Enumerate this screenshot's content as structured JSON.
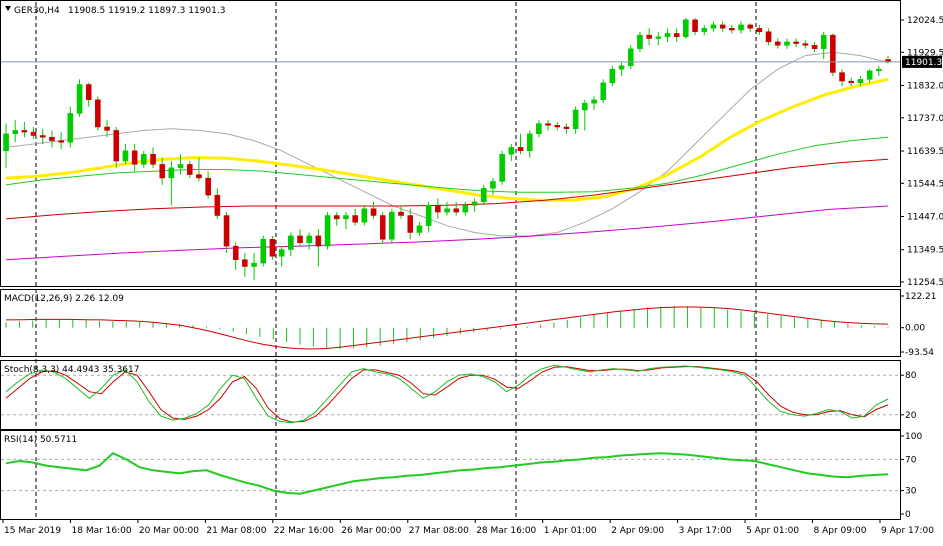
{
  "chart_data": {
    "type": "candlestick",
    "symbol_info": {
      "symbol": "GER30,H4",
      "ohlc": "11908.5 11919.2 11897.3 11901.3",
      "current_price": "11901.3"
    },
    "price_axis": {
      "ticks": [
        "12024.5",
        "11929.5",
        "11832.0",
        "11737.0",
        "11639.5",
        "11544.5",
        "11447.0",
        "11349.5",
        "11254.5"
      ],
      "ylim": [
        11254.5,
        12024.5
      ]
    },
    "candles": [
      {
        "o": 11640,
        "h": 11720,
        "l": 11590,
        "c": 11690
      },
      {
        "o": 11690,
        "h": 11730,
        "l": 11665,
        "c": 11700
      },
      {
        "o": 11700,
        "h": 11725,
        "l": 11680,
        "c": 11695
      },
      {
        "o": 11695,
        "h": 11710,
        "l": 11675,
        "c": 11685
      },
      {
        "o": 11685,
        "h": 11705,
        "l": 11660,
        "c": 11680
      },
      {
        "o": 11680,
        "h": 11700,
        "l": 11650,
        "c": 11670
      },
      {
        "o": 11670,
        "h": 11695,
        "l": 11645,
        "c": 11665
      },
      {
        "o": 11665,
        "h": 11770,
        "l": 11650,
        "c": 11750
      },
      {
        "o": 11750,
        "h": 11850,
        "l": 11740,
        "c": 11835
      },
      {
        "o": 11835,
        "h": 11840,
        "l": 11770,
        "c": 11790
      },
      {
        "o": 11790,
        "h": 11800,
        "l": 11700,
        "c": 11710
      },
      {
        "o": 11710,
        "h": 11730,
        "l": 11680,
        "c": 11700
      },
      {
        "o": 11700,
        "h": 11710,
        "l": 11590,
        "c": 11610
      },
      {
        "o": 11610,
        "h": 11660,
        "l": 11600,
        "c": 11640
      },
      {
        "o": 11640,
        "h": 11660,
        "l": 11580,
        "c": 11600
      },
      {
        "o": 11600,
        "h": 11640,
        "l": 11590,
        "c": 11630
      },
      {
        "o": 11630,
        "h": 11650,
        "l": 11590,
        "c": 11600
      },
      {
        "o": 11600,
        "h": 11620,
        "l": 11540,
        "c": 11560
      },
      {
        "o": 11560,
        "h": 11610,
        "l": 11480,
        "c": 11590
      },
      {
        "o": 11590,
        "h": 11630,
        "l": 11570,
        "c": 11600
      },
      {
        "o": 11600,
        "h": 11610,
        "l": 11560,
        "c": 11570
      },
      {
        "o": 11570,
        "h": 11620,
        "l": 11550,
        "c": 11560
      },
      {
        "o": 11560,
        "h": 11580,
        "l": 11500,
        "c": 11510
      },
      {
        "o": 11510,
        "h": 11530,
        "l": 11440,
        "c": 11450
      },
      {
        "o": 11450,
        "h": 11460,
        "l": 11340,
        "c": 11360
      },
      {
        "o": 11360,
        "h": 11370,
        "l": 11290,
        "c": 11320
      },
      {
        "o": 11320,
        "h": 11340,
        "l": 11270,
        "c": 11300
      },
      {
        "o": 11300,
        "h": 11340,
        "l": 11260,
        "c": 11310
      },
      {
        "o": 11310,
        "h": 11390,
        "l": 11300,
        "c": 11380
      },
      {
        "o": 11380,
        "h": 11390,
        "l": 11320,
        "c": 11330
      },
      {
        "o": 11330,
        "h": 11360,
        "l": 11300,
        "c": 11350
      },
      {
        "o": 11350,
        "h": 11400,
        "l": 11330,
        "c": 11390
      },
      {
        "o": 11390,
        "h": 11410,
        "l": 11360,
        "c": 11370
      },
      {
        "o": 11370,
        "h": 11400,
        "l": 11350,
        "c": 11390
      },
      {
        "o": 11390,
        "h": 11410,
        "l": 11300,
        "c": 11360
      },
      {
        "o": 11360,
        "h": 11460,
        "l": 11350,
        "c": 11450
      },
      {
        "o": 11450,
        "h": 11460,
        "l": 11420,
        "c": 11440
      },
      {
        "o": 11440,
        "h": 11460,
        "l": 11410,
        "c": 11450
      },
      {
        "o": 11450,
        "h": 11470,
        "l": 11420,
        "c": 11430
      },
      {
        "o": 11430,
        "h": 11480,
        "l": 11420,
        "c": 11470
      },
      {
        "o": 11470,
        "h": 11490,
        "l": 11440,
        "c": 11450
      },
      {
        "o": 11450,
        "h": 11460,
        "l": 11370,
        "c": 11380
      },
      {
        "o": 11380,
        "h": 11470,
        "l": 11370,
        "c": 11460
      },
      {
        "o": 11460,
        "h": 11480,
        "l": 11440,
        "c": 11450
      },
      {
        "o": 11450,
        "h": 11470,
        "l": 11380,
        "c": 11400
      },
      {
        "o": 11400,
        "h": 11430,
        "l": 11390,
        "c": 11420
      },
      {
        "o": 11420,
        "h": 11490,
        "l": 11400,
        "c": 11480
      },
      {
        "o": 11480,
        "h": 11500,
        "l": 11440,
        "c": 11460
      },
      {
        "o": 11460,
        "h": 11490,
        "l": 11450,
        "c": 11470
      },
      {
        "o": 11470,
        "h": 11490,
        "l": 11450,
        "c": 11460
      },
      {
        "o": 11460,
        "h": 11490,
        "l": 11450,
        "c": 11480
      },
      {
        "o": 11480,
        "h": 11500,
        "l": 11460,
        "c": 11490
      },
      {
        "o": 11490,
        "h": 11540,
        "l": 11480,
        "c": 11530
      },
      {
        "o": 11530,
        "h": 11560,
        "l": 11510,
        "c": 11550
      },
      {
        "o": 11550,
        "h": 11640,
        "l": 11540,
        "c": 11630
      },
      {
        "o": 11630,
        "h": 11660,
        "l": 11610,
        "c": 11650
      },
      {
        "o": 11650,
        "h": 11690,
        "l": 11630,
        "c": 11640
      },
      {
        "o": 11640,
        "h": 11700,
        "l": 11620,
        "c": 11690
      },
      {
        "o": 11690,
        "h": 11730,
        "l": 11680,
        "c": 11720
      },
      {
        "o": 11720,
        "h": 11730,
        "l": 11700,
        "c": 11715
      },
      {
        "o": 11715,
        "h": 11725,
        "l": 11700,
        "c": 11710
      },
      {
        "o": 11710,
        "h": 11720,
        "l": 11690,
        "c": 11705
      },
      {
        "o": 11705,
        "h": 11770,
        "l": 11690,
        "c": 11760
      },
      {
        "o": 11760,
        "h": 11790,
        "l": 11700,
        "c": 11780
      },
      {
        "o": 11780,
        "h": 11800,
        "l": 11760,
        "c": 11790
      },
      {
        "o": 11790,
        "h": 11850,
        "l": 11780,
        "c": 11840
      },
      {
        "o": 11840,
        "h": 11890,
        "l": 11830,
        "c": 11880
      },
      {
        "o": 11880,
        "h": 11900,
        "l": 11860,
        "c": 11890
      },
      {
        "o": 11890,
        "h": 11950,
        "l": 11880,
        "c": 11940
      },
      {
        "o": 11940,
        "h": 11990,
        "l": 11930,
        "c": 11980
      },
      {
        "o": 11980,
        "h": 12000,
        "l": 11950,
        "c": 11970
      },
      {
        "o": 11970,
        "h": 11990,
        "l": 11950,
        "c": 11975
      },
      {
        "o": 11975,
        "h": 12000,
        "l": 11960,
        "c": 11985
      },
      {
        "o": 11985,
        "h": 12000,
        "l": 11960,
        "c": 11975
      },
      {
        "o": 11975,
        "h": 12030,
        "l": 11970,
        "c": 12025
      },
      {
        "o": 12025,
        "h": 12030,
        "l": 11980,
        "c": 11990
      },
      {
        "o": 11990,
        "h": 12010,
        "l": 11980,
        "c": 12000
      },
      {
        "o": 12000,
        "h": 12020,
        "l": 11990,
        "c": 12010
      },
      {
        "o": 12010,
        "h": 12020,
        "l": 11990,
        "c": 12000
      },
      {
        "o": 12000,
        "h": 12010,
        "l": 11985,
        "c": 11995
      },
      {
        "o": 11995,
        "h": 12020,
        "l": 11985,
        "c": 12010
      },
      {
        "o": 12010,
        "h": 12015,
        "l": 11990,
        "c": 12000
      },
      {
        "o": 12000,
        "h": 12010,
        "l": 11980,
        "c": 11990
      },
      {
        "o": 11990,
        "h": 12000,
        "l": 11950,
        "c": 11960
      },
      {
        "o": 11960,
        "h": 11970,
        "l": 11940,
        "c": 11950
      },
      {
        "o": 11950,
        "h": 11970,
        "l": 11940,
        "c": 11960
      },
      {
        "o": 11960,
        "h": 11970,
        "l": 11945,
        "c": 11955
      },
      {
        "o": 11955,
        "h": 11965,
        "l": 11940,
        "c": 11950
      },
      {
        "o": 11950,
        "h": 11960,
        "l": 11930,
        "c": 11940
      },
      {
        "o": 11940,
        "h": 11990,
        "l": 11910,
        "c": 11980
      },
      {
        "o": 11980,
        "h": 11985,
        "l": 11860,
        "c": 11870
      },
      {
        "o": 11870,
        "h": 11880,
        "l": 11830,
        "c": 11845
      },
      {
        "o": 11845,
        "h": 11855,
        "l": 11830,
        "c": 11840
      },
      {
        "o": 11840,
        "h": 11860,
        "l": 11830,
        "c": 11850
      },
      {
        "o": 11850,
        "h": 11880,
        "l": 11840,
        "c": 11875
      },
      {
        "o": 11875,
        "h": 11890,
        "l": 11860,
        "c": 11880
      },
      {
        "o": 11908.5,
        "h": 11919.2,
        "l": 11897.3,
        "c": 11901.3
      }
    ],
    "moving_averages": [
      {
        "color": "#aaaaaa",
        "values": [
          11650,
          11660,
          11670,
          11680,
          11690,
          11700,
          11705,
          11700,
          11690,
          11670,
          11640,
          11600,
          11560,
          11520,
          11480,
          11450,
          11420,
          11400,
          11390,
          11390,
          11400,
          11430,
          11470,
          11520,
          11580,
          11660,
          11740,
          11820,
          11880,
          11920,
          11930,
          11920,
          11900
        ]
      },
      {
        "color": "#ffee00",
        "values": [
          11560,
          11565,
          11575,
          11590,
          11605,
          11615,
          11620,
          11618,
          11610,
          11598,
          11585,
          11570,
          11555,
          11540,
          11525,
          11510,
          11500,
          11495,
          11495,
          11505,
          11530,
          11570,
          11620,
          11680,
          11730,
          11770,
          11805,
          11830,
          11850
        ]
      },
      {
        "color": "#22cc22",
        "values": [
          11540,
          11555,
          11565,
          11575,
          11580,
          11585,
          11585,
          11580,
          11570,
          11560,
          11550,
          11540,
          11530,
          11522,
          11518,
          11518,
          11520,
          11530,
          11545,
          11570,
          11600,
          11630,
          11655,
          11670,
          11680
        ]
      },
      {
        "color": "#cc0000",
        "values": [
          11440,
          11452,
          11462,
          11470,
          11475,
          11478,
          11478,
          11478,
          11478,
          11480,
          11485,
          11495,
          11510,
          11530,
          11550,
          11570,
          11590,
          11605,
          11615
        ]
      },
      {
        "color": "#cc00cc",
        "values": [
          11320,
          11330,
          11340,
          11348,
          11355,
          11360,
          11366,
          11372,
          11380,
          11390,
          11402,
          11416,
          11432,
          11450,
          11468,
          11478
        ]
      }
    ],
    "current_price_line": 11901.3,
    "x_axis": {
      "labels": [
        "15 Mar 2019",
        "18 Mar 16:00",
        "20 Mar 00:00",
        "21 Mar 08:00",
        "22 Mar 16:00",
        "26 Mar 00:00",
        "27 Mar 08:00",
        "28 Mar 16:00",
        "1 Apr 01:00",
        "2 Apr 09:00",
        "3 Apr 17:00",
        "5 Apr 01:00",
        "8 Apr 09:00",
        "9 Apr 17:00"
      ]
    },
    "macd": {
      "label": "MACD(12,26,9) 2.26 12.09",
      "ticks": [
        "122.21",
        "0.00",
        "-93.54"
      ],
      "ylim": [
        -93.54,
        122.21
      ],
      "histogram": [
        20,
        25,
        28,
        30,
        30,
        30,
        28,
        26,
        25,
        24,
        22,
        20,
        18,
        15,
        10,
        5,
        -5,
        -15,
        -25,
        -35,
        -45,
        -55,
        -65,
        -72,
        -78,
        -82,
        -80,
        -76,
        -70,
        -62,
        -55,
        -48,
        -40,
        -32,
        -25,
        -18,
        -12,
        -6,
        0,
        5,
        12,
        20,
        30,
        40,
        50,
        58,
        65,
        72,
        78,
        82,
        84,
        83,
        80,
        76,
        70,
        64,
        58,
        52,
        46,
        40,
        34,
        28,
        22,
        16,
        10,
        6,
        4
      ],
      "signal": [
        30,
        31,
        32,
        32,
        32,
        31,
        30,
        28,
        26,
        22,
        16,
        8,
        -4,
        -18,
        -34,
        -50,
        -64,
        -74,
        -80,
        -82,
        -80,
        -74,
        -66,
        -58,
        -50,
        -42,
        -34,
        -26,
        -18,
        -10,
        -2,
        6,
        14,
        22,
        30,
        38,
        46,
        54,
        62,
        68,
        74,
        78,
        80,
        80,
        78,
        74,
        68,
        60,
        52,
        44,
        36,
        28,
        22,
        18,
        15,
        14
      ]
    },
    "stoch": {
      "label": "Stoch(8,3,3) 44.4943 35.3617",
      "ticks": [
        "80",
        "20"
      ],
      "main": [
        55,
        70,
        82,
        88,
        85,
        75,
        60,
        45,
        60,
        80,
        88,
        70,
        40,
        18,
        12,
        15,
        22,
        35,
        60,
        80,
        75,
        45,
        18,
        10,
        8,
        12,
        25,
        45,
        65,
        85,
        90,
        85,
        82,
        75,
        60,
        45,
        55,
        70,
        80,
        82,
        78,
        70,
        55,
        65,
        80,
        90,
        95,
        92,
        88,
        85,
        88,
        90,
        88,
        86,
        90,
        92,
        93,
        94,
        92,
        90,
        88,
        85,
        80,
        60,
        40,
        25,
        20,
        18,
        22,
        28,
        25,
        15,
        18,
        35,
        44
      ],
      "signal": [
        45,
        60,
        75,
        85,
        87,
        80,
        68,
        55,
        52,
        70,
        85,
        80,
        55,
        28,
        15,
        13,
        18,
        28,
        45,
        70,
        78,
        60,
        30,
        14,
        9,
        10,
        18,
        35,
        55,
        75,
        88,
        88,
        84,
        80,
        68,
        52,
        50,
        62,
        75,
        80,
        80,
        74,
        62,
        60,
        72,
        85,
        92,
        93,
        90,
        87,
        87,
        89,
        89,
        87,
        88,
        91,
        92,
        93,
        93,
        91,
        89,
        87,
        83,
        70,
        50,
        33,
        24,
        20,
        20,
        25,
        26,
        20,
        17,
        28,
        35
      ]
    },
    "rsi": {
      "label": "RSI(14) 50.5711",
      "ticks": [
        "100",
        "70",
        "30",
        "0"
      ],
      "values": [
        65,
        68,
        66,
        62,
        60,
        58,
        56,
        62,
        78,
        70,
        60,
        56,
        54,
        52,
        55,
        56,
        50,
        45,
        40,
        36,
        30,
        27,
        26,
        30,
        34,
        38,
        42,
        44,
        46,
        47,
        49,
        50,
        52,
        54,
        56,
        57,
        59,
        60,
        62,
        64,
        66,
        67,
        69,
        70,
        72,
        73,
        75,
        76,
        77,
        78,
        77,
        76,
        74,
        72,
        70,
        69,
        68,
        64,
        60,
        56,
        52,
        50,
        48,
        47,
        49,
        50,
        51
      ]
    }
  }
}
